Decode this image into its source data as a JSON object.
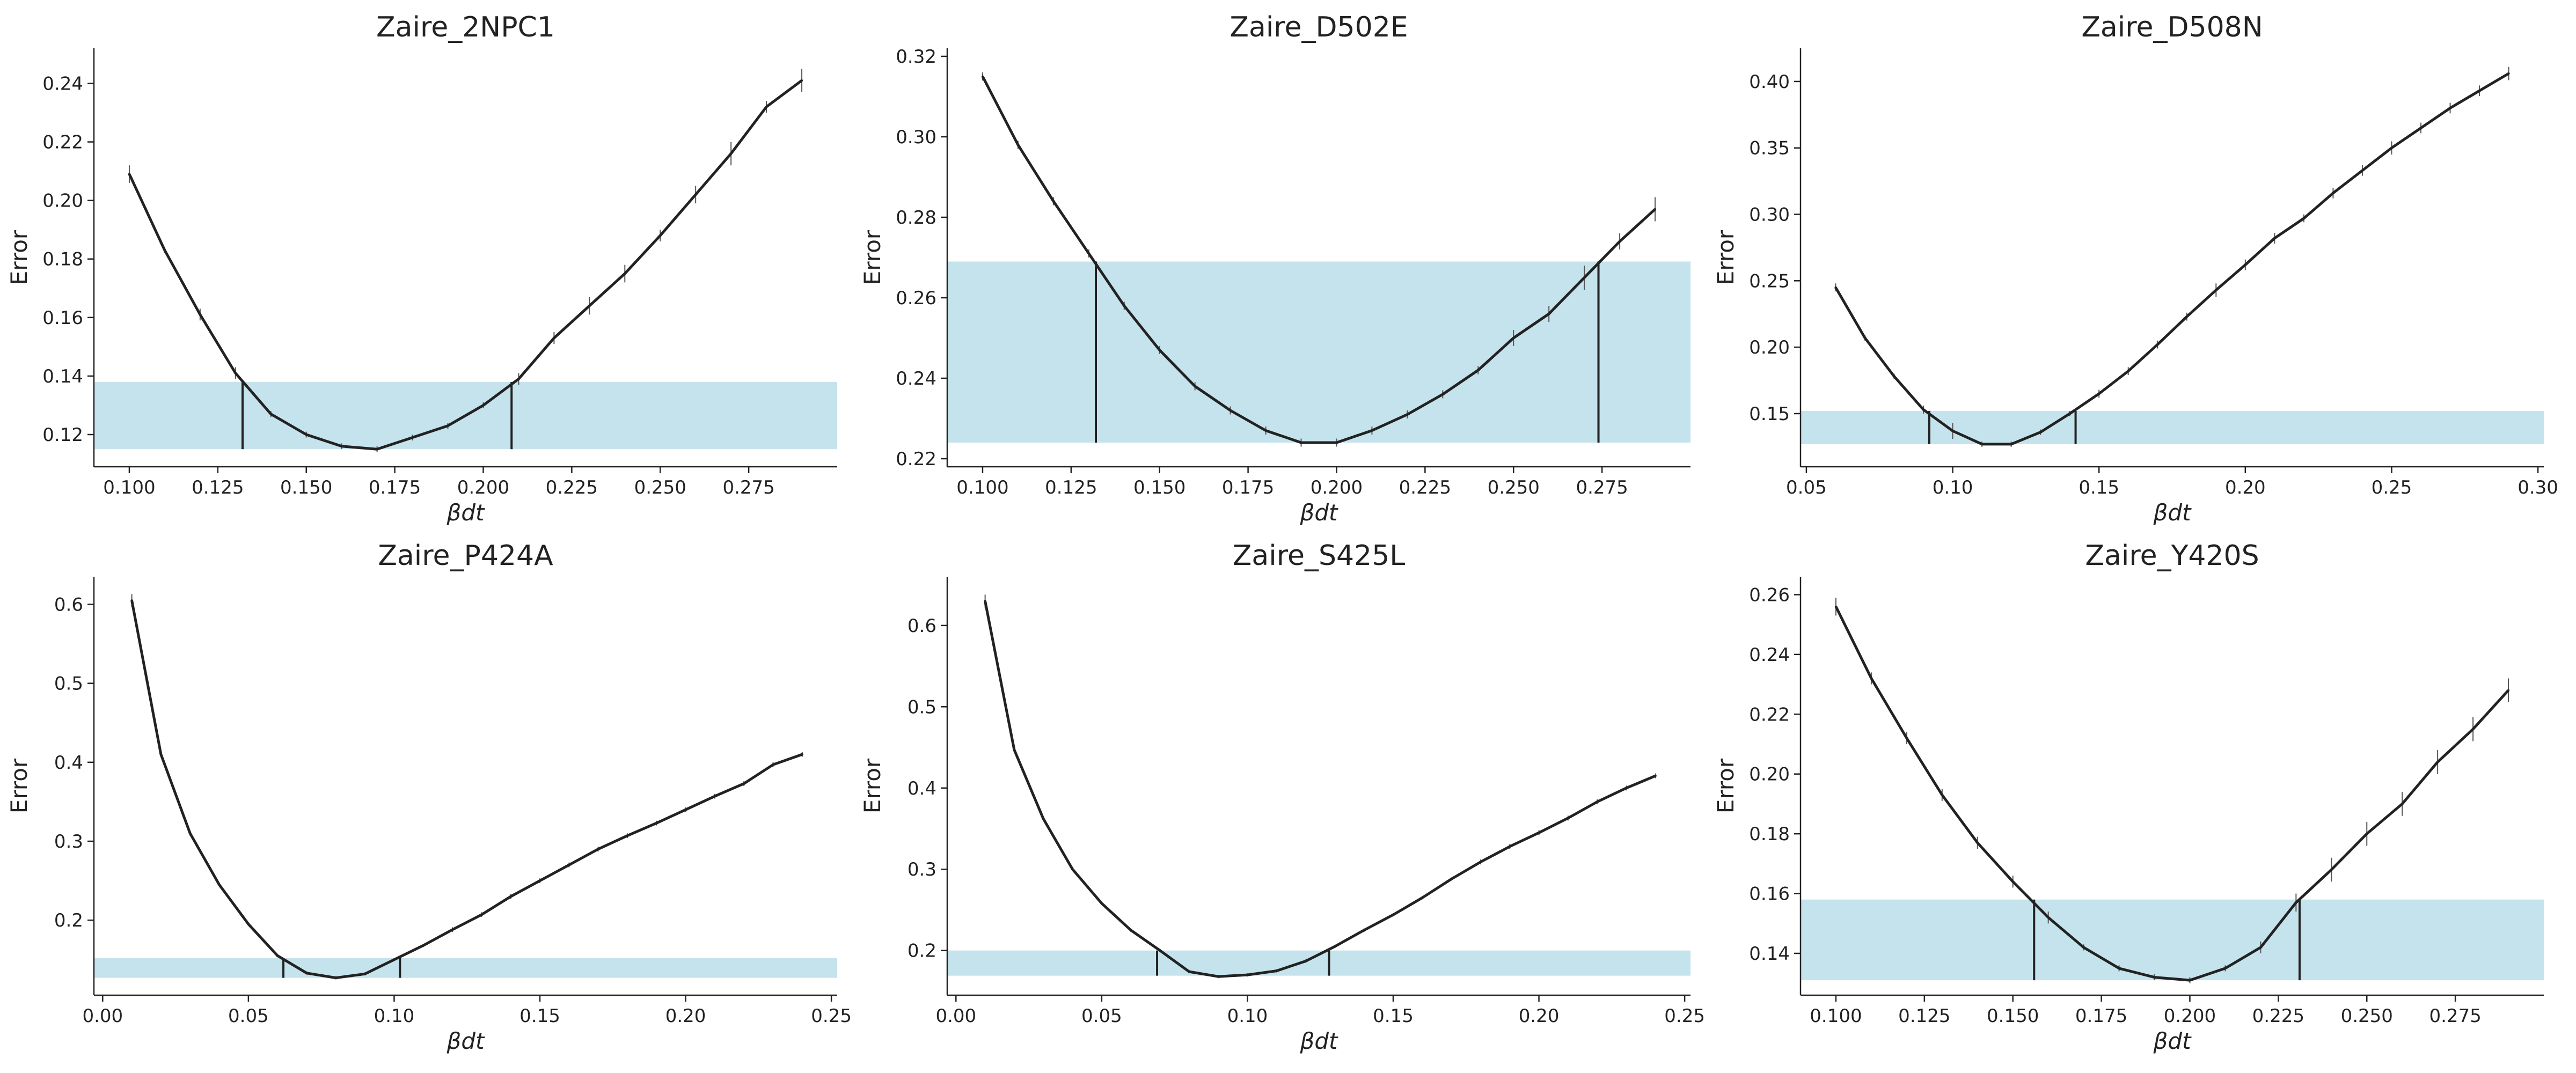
{
  "colors": {
    "line": "#222222",
    "band": "#c5e3ec",
    "axis": "#222222"
  },
  "chart_data": [
    {
      "type": "line",
      "title": "Zaire_2NPC1",
      "xlabel": "βdt",
      "ylabel": "Error",
      "xlim": [
        0.09,
        0.3
      ],
      "ylim": [
        0.109,
        0.252
      ],
      "xticks": [
        0.1,
        0.125,
        0.15,
        0.175,
        0.2,
        0.225,
        0.25,
        0.275
      ],
      "xtick_labels": [
        "0.100",
        "0.125",
        "0.150",
        "0.175",
        "0.200",
        "0.225",
        "0.250",
        "0.275"
      ],
      "yticks": [
        0.12,
        0.14,
        0.16,
        0.18,
        0.2,
        0.22,
        0.24
      ],
      "ytick_labels": [
        "0.12",
        "0.14",
        "0.16",
        "0.18",
        "0.20",
        "0.22",
        "0.24"
      ],
      "band": [
        0.115,
        0.138
      ],
      "vlines": [
        0.132,
        0.208
      ],
      "x": [
        0.1,
        0.11,
        0.12,
        0.13,
        0.14,
        0.15,
        0.16,
        0.17,
        0.18,
        0.19,
        0.2,
        0.21,
        0.22,
        0.23,
        0.24,
        0.25,
        0.26,
        0.27,
        0.28,
        0.29
      ],
      "y": [
        0.209,
        0.183,
        0.161,
        0.141,
        0.127,
        0.12,
        0.116,
        0.115,
        0.119,
        0.123,
        0.13,
        0.139,
        0.153,
        0.164,
        0.175,
        0.188,
        0.202,
        0.216,
        0.232,
        0.241
      ],
      "err": [
        0.003,
        0.001,
        0.002,
        0.002,
        0.001,
        0.001,
        0.001,
        0.001,
        0.001,
        0.001,
        0.001,
        0.002,
        0.002,
        0.003,
        0.003,
        0.002,
        0.003,
        0.004,
        0.002,
        0.004
      ]
    },
    {
      "type": "line",
      "title": "Zaire_D502E",
      "xlabel": "βdt",
      "ylabel": "Error",
      "xlim": [
        0.09,
        0.3
      ],
      "ylim": [
        0.218,
        0.322
      ],
      "xticks": [
        0.1,
        0.125,
        0.15,
        0.175,
        0.2,
        0.225,
        0.25,
        0.275
      ],
      "xtick_labels": [
        "0.100",
        "0.125",
        "0.150",
        "0.175",
        "0.200",
        "0.225",
        "0.250",
        "0.275"
      ],
      "yticks": [
        0.22,
        0.24,
        0.26,
        0.28,
        0.3,
        0.32
      ],
      "ytick_labels": [
        "0.22",
        "0.24",
        "0.26",
        "0.28",
        "0.30",
        "0.32"
      ],
      "band": [
        0.224,
        0.269
      ],
      "vlines": [
        0.132,
        0.274
      ],
      "x": [
        0.1,
        0.11,
        0.12,
        0.13,
        0.14,
        0.15,
        0.16,
        0.17,
        0.18,
        0.19,
        0.2,
        0.21,
        0.22,
        0.23,
        0.24,
        0.25,
        0.26,
        0.27,
        0.28,
        0.29
      ],
      "y": [
        0.315,
        0.298,
        0.284,
        0.271,
        0.258,
        0.247,
        0.238,
        0.232,
        0.227,
        0.224,
        0.224,
        0.227,
        0.231,
        0.236,
        0.242,
        0.25,
        0.256,
        0.265,
        0.274,
        0.282
      ],
      "err": [
        0.001,
        0.001,
        0.001,
        0.001,
        0.001,
        0.001,
        0.001,
        0.001,
        0.001,
        0.001,
        0.001,
        0.001,
        0.001,
        0.001,
        0.001,
        0.002,
        0.002,
        0.003,
        0.002,
        0.003
      ]
    },
    {
      "type": "line",
      "title": "Zaire_D508N",
      "xlabel": "βdt",
      "ylabel": "Error",
      "xlim": [
        0.048,
        0.302
      ],
      "ylim": [
        0.11,
        0.425
      ],
      "xticks": [
        0.05,
        0.1,
        0.15,
        0.2,
        0.25,
        0.3
      ],
      "xtick_labels": [
        "0.05",
        "0.10",
        "0.15",
        "0.20",
        "0.25",
        "0.30"
      ],
      "yticks": [
        0.15,
        0.2,
        0.25,
        0.3,
        0.35,
        0.4
      ],
      "ytick_labels": [
        "0.15",
        "0.20",
        "0.25",
        "0.30",
        "0.35",
        "0.40"
      ],
      "band": [
        0.127,
        0.152
      ],
      "vlines": [
        0.092,
        0.142
      ],
      "x": [
        0.06,
        0.07,
        0.08,
        0.09,
        0.1,
        0.11,
        0.12,
        0.13,
        0.14,
        0.15,
        0.16,
        0.17,
        0.18,
        0.19,
        0.2,
        0.21,
        0.22,
        0.23,
        0.24,
        0.25,
        0.26,
        0.27,
        0.28,
        0.29
      ],
      "y": [
        0.245,
        0.207,
        0.178,
        0.153,
        0.137,
        0.127,
        0.127,
        0.136,
        0.15,
        0.165,
        0.182,
        0.202,
        0.223,
        0.243,
        0.262,
        0.282,
        0.297,
        0.316,
        0.333,
        0.35,
        0.365,
        0.38,
        0.393,
        0.406
      ],
      "err": [
        0.003,
        0.002,
        0.002,
        0.003,
        0.006,
        0.002,
        0.002,
        0.002,
        0.002,
        0.003,
        0.003,
        0.003,
        0.003,
        0.005,
        0.004,
        0.004,
        0.003,
        0.004,
        0.004,
        0.005,
        0.004,
        0.004,
        0.004,
        0.005
      ]
    },
    {
      "type": "line",
      "title": "Zaire_P424A",
      "xlabel": "βdt",
      "ylabel": "Error",
      "xlim": [
        -0.003,
        0.252
      ],
      "ylim": [
        0.105,
        0.635
      ],
      "xticks": [
        0,
        0.05,
        0.1,
        0.15,
        0.2,
        0.25
      ],
      "xtick_labels": [
        "0.00",
        "0.05",
        "0.10",
        "0.15",
        "0.20",
        "0.25"
      ],
      "yticks": [
        0.2,
        0.3,
        0.4,
        0.5,
        0.6
      ],
      "ytick_labels": [
        "0.2",
        "0.3",
        "0.4",
        "0.5",
        "0.6"
      ],
      "band": [
        0.127,
        0.152
      ],
      "vlines": [
        0.062,
        0.102
      ],
      "x": [
        0.01,
        0.02,
        0.03,
        0.04,
        0.05,
        0.06,
        0.07,
        0.08,
        0.09,
        0.1,
        0.11,
        0.12,
        0.13,
        0.14,
        0.15,
        0.16,
        0.17,
        0.18,
        0.19,
        0.2,
        0.21,
        0.22,
        0.23,
        0.24
      ],
      "y": [
        0.605,
        0.41,
        0.31,
        0.245,
        0.195,
        0.155,
        0.133,
        0.127,
        0.132,
        0.15,
        0.168,
        0.188,
        0.207,
        0.23,
        0.25,
        0.27,
        0.29,
        0.307,
        0.323,
        0.34,
        0.357,
        0.373,
        0.397,
        0.41
      ],
      "err": [
        0.008,
        0.003,
        0.003,
        0.002,
        0.002,
        0.002,
        0.002,
        0.002,
        0.002,
        0.002,
        0.002,
        0.003,
        0.003,
        0.003,
        0.003,
        0.003,
        0.003,
        0.003,
        0.003,
        0.003,
        0.003,
        0.003,
        0.003,
        0.003
      ]
    },
    {
      "type": "line",
      "title": "Zaire_S425L",
      "xlabel": "βdt",
      "ylabel": "Error",
      "xlim": [
        -0.003,
        0.252
      ],
      "ylim": [
        0.145,
        0.66
      ],
      "xticks": [
        0,
        0.05,
        0.1,
        0.15,
        0.2,
        0.25
      ],
      "xtick_labels": [
        "0.00",
        "0.05",
        "0.10",
        "0.15",
        "0.20",
        "0.25"
      ],
      "yticks": [
        0.2,
        0.3,
        0.4,
        0.5,
        0.6
      ],
      "ytick_labels": [
        "0.2",
        "0.3",
        "0.4",
        "0.5",
        "0.6"
      ],
      "band": [
        0.169,
        0.2
      ],
      "vlines": [
        0.069,
        0.128
      ],
      "x": [
        0.01,
        0.02,
        0.03,
        0.04,
        0.05,
        0.06,
        0.07,
        0.08,
        0.09,
        0.1,
        0.11,
        0.12,
        0.13,
        0.14,
        0.15,
        0.16,
        0.17,
        0.18,
        0.19,
        0.2,
        0.21,
        0.22,
        0.23,
        0.24
      ],
      "y": [
        0.63,
        0.447,
        0.362,
        0.3,
        0.258,
        0.225,
        0.2,
        0.174,
        0.168,
        0.17,
        0.175,
        0.187,
        0.205,
        0.225,
        0.244,
        0.265,
        0.288,
        0.309,
        0.328,
        0.345,
        0.363,
        0.383,
        0.4,
        0.415
      ],
      "err": [
        0.008,
        0.002,
        0.002,
        0.002,
        0.002,
        0.002,
        0.002,
        0.002,
        0.002,
        0.002,
        0.002,
        0.002,
        0.002,
        0.002,
        0.002,
        0.002,
        0.002,
        0.003,
        0.003,
        0.003,
        0.003,
        0.003,
        0.003,
        0.003
      ]
    },
    {
      "type": "line",
      "title": "Zaire_Y420S",
      "xlabel": "βdt",
      "ylabel": "Error",
      "xlim": [
        0.09,
        0.3
      ],
      "ylim": [
        0.126,
        0.266
      ],
      "xticks": [
        0.1,
        0.125,
        0.15,
        0.175,
        0.2,
        0.225,
        0.25,
        0.275
      ],
      "xtick_labels": [
        "0.100",
        "0.125",
        "0.150",
        "0.175",
        "0.200",
        "0.225",
        "0.250",
        "0.275"
      ],
      "yticks": [
        0.14,
        0.16,
        0.18,
        0.2,
        0.22,
        0.24,
        0.26
      ],
      "ytick_labels": [
        "0.14",
        "0.16",
        "0.18",
        "0.20",
        "0.22",
        "0.24",
        "0.26"
      ],
      "band": [
        0.131,
        0.158
      ],
      "vlines": [
        0.156,
        0.231
      ],
      "x": [
        0.1,
        0.11,
        0.12,
        0.13,
        0.14,
        0.15,
        0.16,
        0.17,
        0.18,
        0.19,
        0.2,
        0.21,
        0.22,
        0.23,
        0.24,
        0.25,
        0.26,
        0.27,
        0.28,
        0.29
      ],
      "y": [
        0.256,
        0.232,
        0.212,
        0.193,
        0.177,
        0.164,
        0.152,
        0.142,
        0.135,
        0.132,
        0.131,
        0.135,
        0.142,
        0.157,
        0.168,
        0.18,
        0.19,
        0.204,
        0.215,
        0.228
      ],
      "err": [
        0.003,
        0.002,
        0.002,
        0.002,
        0.002,
        0.002,
        0.002,
        0.001,
        0.001,
        0.001,
        0.001,
        0.001,
        0.002,
        0.003,
        0.004,
        0.004,
        0.004,
        0.004,
        0.004,
        0.004
      ]
    }
  ]
}
